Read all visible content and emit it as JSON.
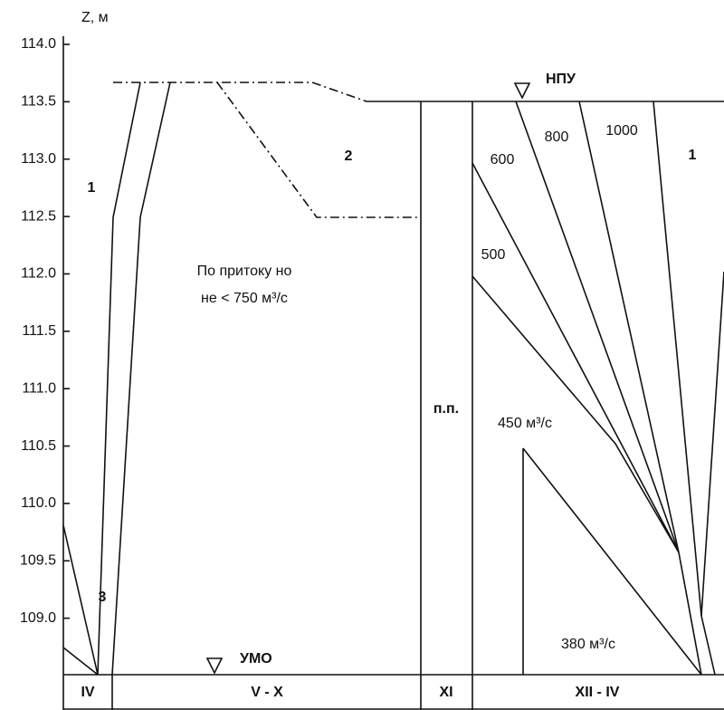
{
  "chart_data": {
    "type": "zones",
    "y_label": "Z, м",
    "ylim": [
      108.5,
      114.0
    ],
    "yticks": [
      {
        "value": 109.0,
        "label": "109.0"
      },
      {
        "value": 109.5,
        "label": "109.5"
      },
      {
        "value": 110.0,
        "label": "110.0"
      },
      {
        "value": 110.5,
        "label": "110.5"
      },
      {
        "value": 111.0,
        "label": "111.0"
      },
      {
        "value": 111.5,
        "label": "111.5"
      },
      {
        "value": 112.0,
        "label": "112.0"
      },
      {
        "value": 112.5,
        "label": "112.5"
      },
      {
        "value": 113.0,
        "label": "113.0"
      },
      {
        "value": 113.5,
        "label": "113.5"
      },
      {
        "value": 114.0,
        "label": "114.0"
      }
    ],
    "categories": [
      "IV",
      "V - X",
      "XI",
      "XII - IV"
    ],
    "annotations": {
      "zone_1_left": "1",
      "zone_3": "3",
      "zone_2": "2",
      "zone_1_right": "1",
      "inflow_1": "По притоку но",
      "inflow_2": "не < 750 м³/с",
      "pp": "п.п.",
      "q600": "600",
      "q800": "800",
      "q1000": "1000",
      "q500": "500",
      "q450": "450 м³/с",
      "q380": "380 м³/с",
      "npu": "НПУ",
      "umo": "УМО"
    }
  }
}
